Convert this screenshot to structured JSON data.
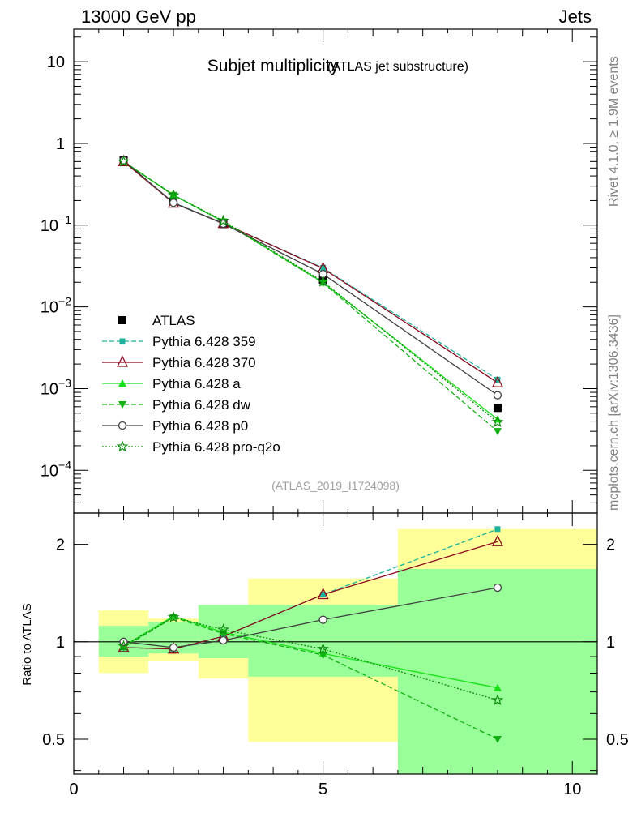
{
  "header": {
    "left": "13000 GeV pp",
    "right": "Jets"
  },
  "side": {
    "rivet": "Rivet 4.1.0, ≥ 1.9M events",
    "mcplots": "mcplots.cern.ch [arXiv:1306.3436]"
  },
  "chart_data": [
    {
      "type": "line",
      "title": "Subjet multiplicity",
      "subtitle": "(ATLAS jet substructure)",
      "watermark": "(ATLAS_2019_I1724098)",
      "yscale": "log",
      "xlim": [
        0,
        10.5
      ],
      "ylim": [
        3e-05,
        25
      ],
      "ytick_labels": [
        {
          "value": 10,
          "base": "10",
          "exp": ""
        },
        {
          "value": 1,
          "base": "1",
          "exp": ""
        },
        {
          "value": 0.1,
          "base": "10",
          "exp": "−1"
        },
        {
          "value": 0.01,
          "base": "10",
          "exp": "−2"
        },
        {
          "value": 0.001,
          "base": "10",
          "exp": "−3"
        },
        {
          "value": 0.0001,
          "base": "10",
          "exp": "−4"
        }
      ],
      "series": [
        {
          "name": "ATLAS",
          "color": "#000000",
          "dash": "",
          "marker": "square",
          "x": [
            1,
            2,
            3,
            5,
            8.5
          ],
          "values": [
            0.62,
            0.195,
            0.103,
            0.0215,
            0.00058
          ]
        },
        {
          "name": "Pythia 6.428 359",
          "color": "#1bb39b",
          "dash": "6,3",
          "marker": "smallsquare",
          "x": [
            1,
            2,
            3,
            5,
            8.5
          ],
          "values": [
            0.6,
            0.19,
            0.105,
            0.03,
            0.00129
          ]
        },
        {
          "name": "Pythia 6.428 370",
          "color": "#8b0a1e",
          "dash": "",
          "marker": "opentriangle",
          "x": [
            1,
            2,
            3,
            5,
            8.5
          ],
          "values": [
            0.6,
            0.186,
            0.105,
            0.0295,
            0.00118
          ]
        },
        {
          "name": "Pythia 6.428 a",
          "color": "#18e018",
          "dash": "",
          "marker": "triangle",
          "x": [
            1,
            2,
            3,
            5,
            8.5
          ],
          "values": [
            0.6,
            0.235,
            0.11,
            0.0199,
            0.00042
          ]
        },
        {
          "name": "Pythia 6.428 dw",
          "color": "#12b012",
          "dash": "6,3",
          "marker": "invtriangle",
          "x": [
            1,
            2,
            3,
            5,
            8.5
          ],
          "values": [
            0.6,
            0.232,
            0.11,
            0.0196,
            0.0003
          ]
        },
        {
          "name": "Pythia 6.428 p0",
          "color": "#404040",
          "dash": "",
          "marker": "circle",
          "x": [
            1,
            2,
            3,
            5,
            8.5
          ],
          "values": [
            0.62,
            0.188,
            0.104,
            0.0252,
            0.00083
          ]
        },
        {
          "name": "Pythia 6.428 pro-q2o",
          "color": "#0a8a0a",
          "dash": "2,2",
          "marker": "star",
          "x": [
            1,
            2,
            3,
            5,
            8.5
          ],
          "values": [
            0.6,
            0.232,
            0.113,
            0.0204,
            0.00039
          ]
        }
      ]
    },
    {
      "type": "line",
      "ylabel": "Ratio to ATLAS",
      "yscale": "log",
      "xlim": [
        0,
        10.5
      ],
      "ylim": [
        0.39,
        2.5
      ],
      "xticks": [
        0,
        5,
        10
      ],
      "xtick_labels": [
        "0",
        "5",
        "10"
      ],
      "yticks": [
        0.5,
        1,
        2
      ],
      "ytick_labels": [
        "0.5",
        "1",
        "2"
      ],
      "bands": [
        {
          "x0": 0.5,
          "x1": 1.5,
          "yellow": [
            0.8,
            1.25
          ],
          "green": [
            0.9,
            1.12
          ]
        },
        {
          "x0": 1.5,
          "x1": 2.5,
          "yellow": [
            0.87,
            1.18
          ],
          "green": [
            0.92,
            1.15
          ]
        },
        {
          "x0": 2.5,
          "x1": 3.5,
          "yellow": [
            0.77,
            1.28
          ],
          "green": [
            0.89,
            1.3
          ]
        },
        {
          "x0": 3.5,
          "x1": 6.5,
          "yellow": [
            0.49,
            1.57
          ],
          "green": [
            0.78,
            1.3
          ]
        },
        {
          "x0": 6.5,
          "x1": 10.5,
          "yellow": [
            0.39,
            2.23
          ],
          "green": [
            0.39,
            1.68
          ]
        }
      ],
      "series": [
        {
          "name": "Pythia 6.428 359",
          "x": [
            1,
            2,
            3,
            5,
            8.5
          ],
          "values": [
            0.96,
            0.95,
            1.04,
            1.4,
            2.23
          ]
        },
        {
          "name": "Pythia 6.428 370",
          "x": [
            1,
            2,
            3,
            5,
            8.5
          ],
          "values": [
            0.96,
            0.95,
            1.04,
            1.4,
            2.04
          ]
        },
        {
          "name": "Pythia 6.428 a",
          "x": [
            1,
            2,
            3,
            5,
            8.5
          ],
          "values": [
            0.97,
            1.2,
            1.07,
            0.92,
            0.72
          ]
        },
        {
          "name": "Pythia 6.428 dw",
          "x": [
            1,
            2,
            3,
            5,
            8.5
          ],
          "values": [
            0.96,
            1.19,
            1.06,
            0.91,
            0.5
          ]
        },
        {
          "name": "Pythia 6.428 p0",
          "x": [
            1,
            2,
            3,
            5,
            8.5
          ],
          "values": [
            1.0,
            0.96,
            1.01,
            1.17,
            1.47
          ]
        },
        {
          "name": "Pythia 6.428 pro-q2o",
          "x": [
            1,
            2,
            3,
            5,
            8.5
          ],
          "values": [
            0.97,
            1.19,
            1.09,
            0.95,
            0.66
          ]
        }
      ]
    }
  ]
}
